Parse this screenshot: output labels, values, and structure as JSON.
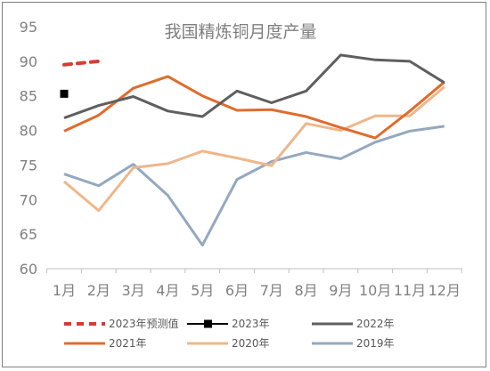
{
  "chart_data": {
    "type": "line",
    "title": "我国精炼铜月度产量",
    "xlabel": "",
    "ylabel": "",
    "categories": [
      "1月",
      "2月",
      "3月",
      "4月",
      "5月",
      "6月",
      "7月",
      "8月",
      "9月",
      "10月",
      "11月",
      "12月"
    ],
    "ylim": [
      60,
      95
    ],
    "yticks": [
      60,
      65,
      70,
      75,
      80,
      85,
      90,
      95
    ],
    "grid": false,
    "legend_position": "bottom",
    "series": [
      {
        "name": "2023年预测值",
        "color": "#d63c34",
        "style": "dashed",
        "values": [
          89.5,
          90.0,
          null,
          null,
          null,
          null,
          null,
          null,
          null,
          null,
          null,
          null
        ]
      },
      {
        "name": "2023年",
        "color": "#000000",
        "style": "marker",
        "values": [
          85.3,
          null,
          null,
          null,
          null,
          null,
          null,
          null,
          null,
          null,
          null,
          null
        ]
      },
      {
        "name": "2022年",
        "color": "#5f5f5f",
        "style": "solid",
        "values": [
          81.8,
          83.6,
          84.9,
          82.8,
          82.0,
          85.7,
          84.0,
          85.7,
          90.9,
          90.2,
          90.0,
          86.9
        ]
      },
      {
        "name": "2021年",
        "color": "#e06c2c",
        "style": "solid",
        "values": [
          79.9,
          82.2,
          86.1,
          87.8,
          85.0,
          82.9,
          83.0,
          82.0,
          80.4,
          78.9,
          82.8,
          87.0
        ]
      },
      {
        "name": "2020年",
        "color": "#efb78a",
        "style": "solid",
        "values": [
          72.6,
          68.4,
          74.6,
          75.2,
          77.0,
          76.0,
          74.9,
          81.0,
          80.0,
          82.1,
          82.1,
          86.3
        ]
      },
      {
        "name": "2019年",
        "color": "#94a8bf",
        "style": "solid",
        "values": [
          73.7,
          72.0,
          75.1,
          70.6,
          63.4,
          72.9,
          75.5,
          76.8,
          75.9,
          78.3,
          79.9,
          80.6
        ]
      }
    ]
  }
}
